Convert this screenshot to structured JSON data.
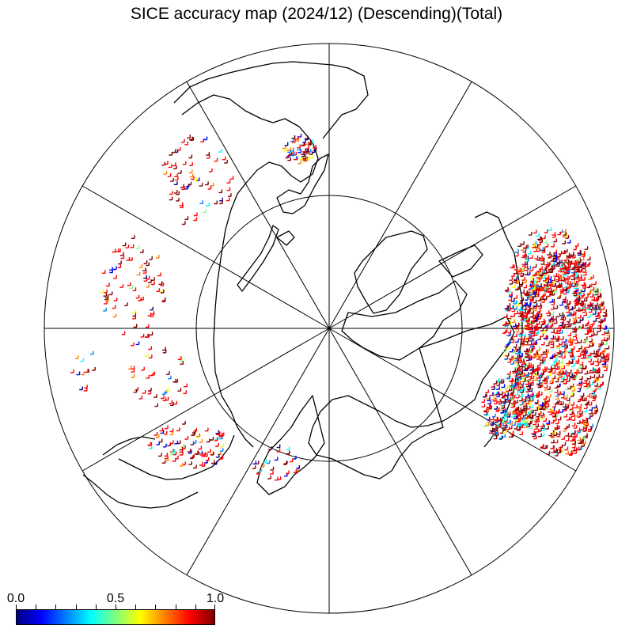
{
  "title": "SICE accuracy map (2024/12) (Descending)(Total)",
  "colorbar": {
    "labels": [
      {
        "text": "0.0",
        "value": 0.0
      },
      {
        "text": "0.5",
        "value": 0.5
      },
      {
        "text": "1.0",
        "value": 1.0
      }
    ],
    "ticks": [
      0,
      0.1,
      0.2,
      0.3,
      0.4,
      0.5,
      0.6,
      0.7,
      0.8,
      0.9,
      1.0
    ],
    "colors": [
      "#00007f",
      "#0000ff",
      "#007fff",
      "#00ffff",
      "#7fff7f",
      "#ffff00",
      "#ff7f00",
      "#ff0000",
      "#7f0000"
    ]
  },
  "map": {
    "projection": "north-polar-stereographic",
    "meridians_deg": [
      0,
      30,
      60,
      90,
      120,
      150,
      180,
      210,
      240,
      270,
      300,
      330
    ],
    "inner_circle": true,
    "marker": "+"
  }
}
